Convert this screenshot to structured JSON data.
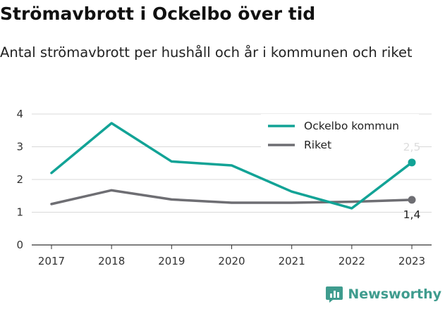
{
  "title": "Strömavbrott i Ockelbo över tid",
  "subtitle": "Antal strömavbrott per hushåll och år i kommunen och riket",
  "brand": "Newsworthy",
  "colors": {
    "ockelbo": "#12a396",
    "riket": "#6e6e73",
    "label_ockelbo": "#dcdcdc",
    "label_riket": "#222222"
  },
  "chart_data": {
    "type": "line",
    "title": "Strömavbrott i Ockelbo över tid",
    "subtitle": "Antal strömavbrott per hushåll och år i kommunen och riket",
    "x": [
      "2017",
      "2018",
      "2019",
      "2020",
      "2021",
      "2022",
      "2023"
    ],
    "y_ticks": [
      "0",
      "1",
      "2",
      "3",
      "4"
    ],
    "ylim": [
      0,
      4
    ],
    "grid": "horizontal",
    "legend": "top-right",
    "series": [
      {
        "name": "Ockelbo kommun",
        "values": [
          2.2,
          3.72,
          2.55,
          2.43,
          1.63,
          1.12,
          2.52
        ],
        "end_label": "2,5"
      },
      {
        "name": "Riket",
        "values": [
          1.25,
          1.67,
          1.39,
          1.29,
          1.29,
          1.32,
          1.38
        ],
        "end_label": "1,4"
      }
    ]
  }
}
